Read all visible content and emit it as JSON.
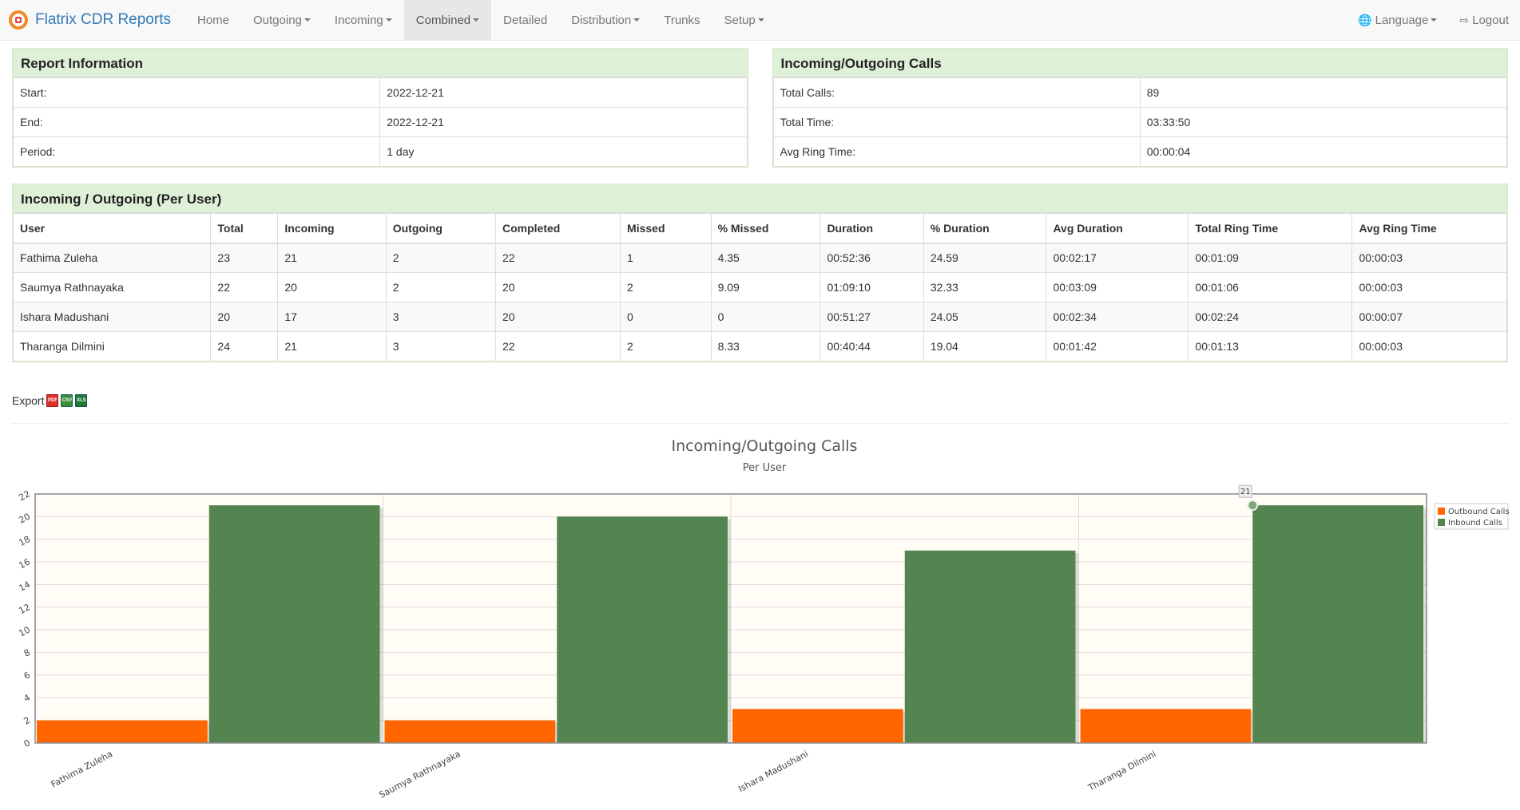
{
  "app": {
    "brand": "Flatrix CDR Reports"
  },
  "nav": {
    "items": [
      {
        "label": "Home",
        "dropdown": false,
        "active": false
      },
      {
        "label": "Outgoing",
        "dropdown": true,
        "active": false
      },
      {
        "label": "Incoming",
        "dropdown": true,
        "active": false
      },
      {
        "label": "Combined",
        "dropdown": true,
        "active": true
      },
      {
        "label": "Detailed",
        "dropdown": false,
        "active": false
      },
      {
        "label": "Distribution",
        "dropdown": true,
        "active": false
      },
      {
        "label": "Trunks",
        "dropdown": false,
        "active": false
      },
      {
        "label": "Setup",
        "dropdown": true,
        "active": false
      }
    ],
    "language": "Language",
    "logout": "Logout"
  },
  "report_info": {
    "title": "Report Information",
    "rows": [
      {
        "label": "Start:",
        "value": "2022-12-21"
      },
      {
        "label": "End:",
        "value": "2022-12-21"
      },
      {
        "label": "Period:",
        "value": "1 day"
      }
    ]
  },
  "calls_info": {
    "title": "Incoming/Outgoing Calls",
    "rows": [
      {
        "label": "Total Calls:",
        "value": "89"
      },
      {
        "label": "Total Time:",
        "value": "03:33:50"
      },
      {
        "label": "Avg Ring Time:",
        "value": "00:00:04"
      }
    ]
  },
  "per_user": {
    "title": "Incoming / Outgoing (Per User)",
    "columns": [
      "User",
      "Total",
      "Incoming",
      "Outgoing",
      "Completed",
      "Missed",
      "% Missed",
      "Duration",
      "% Duration",
      "Avg Duration",
      "Total Ring Time",
      "Avg Ring Time"
    ],
    "rows": [
      [
        "Fathima Zuleha",
        "23",
        "21",
        "2",
        "22",
        "1",
        "4.35",
        "00:52:36",
        "24.59",
        "00:02:17",
        "00:01:09",
        "00:00:03"
      ],
      [
        "Saumya Rathnayaka",
        "22",
        "20",
        "2",
        "20",
        "2",
        "9.09",
        "01:09:10",
        "32.33",
        "00:03:09",
        "00:01:06",
        "00:00:03"
      ],
      [
        "Ishara Madushani",
        "20",
        "17",
        "3",
        "20",
        "0",
        "0",
        "00:51:27",
        "24.05",
        "00:02:34",
        "00:02:24",
        "00:00:07"
      ],
      [
        "Tharanga Dilmini",
        "24",
        "21",
        "3",
        "22",
        "2",
        "8.33",
        "00:40:44",
        "19.04",
        "00:01:42",
        "00:01:13",
        "00:00:03"
      ]
    ]
  },
  "export": {
    "label": "Export",
    "icons": [
      "pdf-icon",
      "csv-icon",
      "xls-icon"
    ]
  },
  "chart_data": {
    "type": "bar",
    "title": "Incoming/Outgoing Calls",
    "subtitle": "Per User",
    "categories": [
      "Fathima Zuleha",
      "Saumya Rathnayaka",
      "Ishara Madushani",
      "Tharanga Dilmini"
    ],
    "series": [
      {
        "name": "Outbound Calls",
        "values": [
          2,
          2,
          3,
          3
        ],
        "color": "#ff6600"
      },
      {
        "name": "Inbound Calls",
        "values": [
          21,
          20,
          17,
          21
        ],
        "color": "#548450"
      }
    ],
    "ylim": [
      0,
      22
    ],
    "yticks": [
      0,
      2,
      4,
      6,
      8,
      10,
      12,
      14,
      16,
      18,
      20,
      22
    ],
    "grid": true,
    "legend": "top-right",
    "highlight_label": "21",
    "background": "#fffdf6"
  }
}
